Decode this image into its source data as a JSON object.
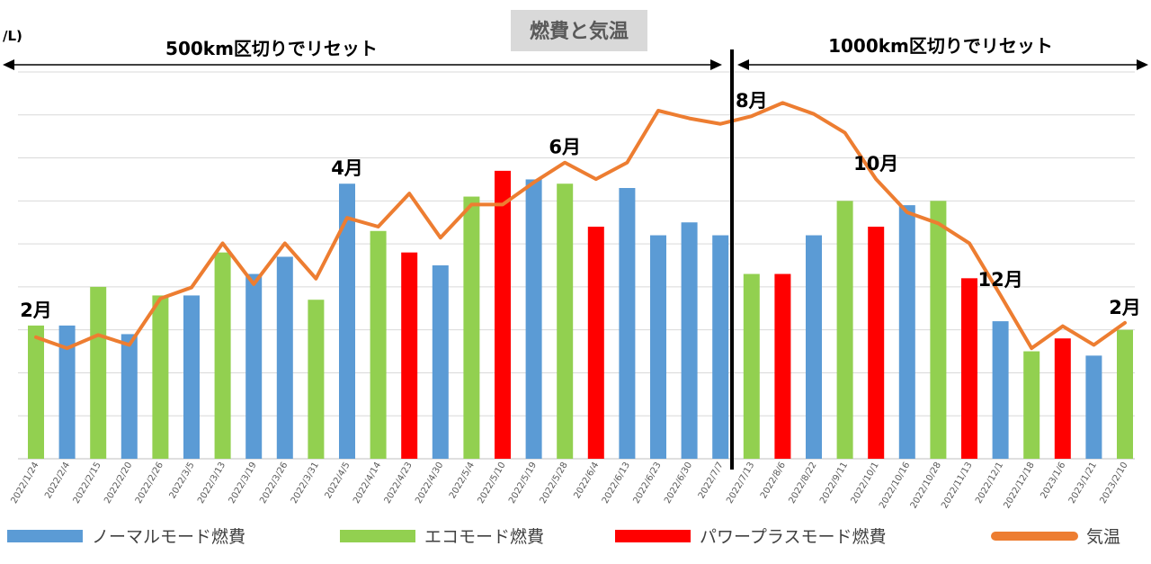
{
  "chart_data": {
    "type": "bar",
    "title": "燃費と気温",
    "y_unit_fragment": "/L)",
    "categories": [
      "2022/1/24",
      "2022/2/4",
      "2022/2/15",
      "2022/2/20",
      "2022/2/26",
      "2022/3/5",
      "2022/3/13",
      "2022/3/19",
      "2022/3/26",
      "2022/3/31",
      "2022/4/5",
      "2022/4/14",
      "2022/4/23",
      "2022/4/30",
      "2022/5/4",
      "2022/5/10",
      "2022/5/19",
      "2022/5/28",
      "2022/6/4",
      "2022/6/13",
      "2022/6/23",
      "2022/6/30",
      "2022/7/7",
      "2022/7/13",
      "2022/8/6",
      "2022/8/22",
      "2022/9/11",
      "2022/10/1",
      "2022/10/16",
      "2022/10/28",
      "2022/11/13",
      "2022/12/1",
      "2022/12/18",
      "2023/1/6",
      "2023/1/21",
      "2023/2/10"
    ],
    "bar_modes": [
      "eco",
      "normal",
      "eco",
      "normal",
      "eco",
      "normal",
      "eco",
      "normal",
      "normal",
      "eco",
      "normal",
      "eco",
      "power",
      "normal",
      "eco",
      "power",
      "normal",
      "eco",
      "power",
      "normal",
      "normal",
      "normal",
      "normal",
      "eco",
      "power",
      "normal",
      "eco",
      "power",
      "normal",
      "eco",
      "power",
      "normal",
      "eco",
      "power",
      "normal",
      "eco"
    ],
    "bar_values": [
      40.5,
      40.5,
      45.0,
      39.5,
      44.0,
      44.0,
      49.0,
      46.5,
      48.5,
      43.5,
      57.0,
      51.5,
      49.0,
      47.5,
      55.5,
      58.5,
      57.5,
      57.0,
      52.0,
      56.5,
      51.0,
      52.5,
      51.0,
      46.5,
      46.5,
      51.0,
      55.0,
      52.0,
      54.5,
      55.0,
      46.0,
      41.0,
      37.5,
      39.0,
      37.0,
      40.0
    ],
    "temperature": [
      1.0,
      0.0,
      1.2,
      0.3,
      4.5,
      5.5,
      9.5,
      5.8,
      9.5,
      6.3,
      11.8,
      11.0,
      14.0,
      10.0,
      13.0,
      13.0,
      15.0,
      16.8,
      15.3,
      16.8,
      21.5,
      20.8,
      20.3,
      21.0,
      22.2,
      21.2,
      19.5,
      15.3,
      12.3,
      11.3,
      9.5,
      4.8,
      0.0,
      2.0,
      0.3,
      2.3
    ],
    "bar_axis": [
      25,
      70
    ],
    "temp_axis": [
      -10,
      25
    ],
    "series": [
      {
        "key": "normal",
        "name": "ノーマルモード燃費",
        "color": "#5b9bd5"
      },
      {
        "key": "eco",
        "name": "エコモード燃費",
        "color": "#92d050"
      },
      {
        "key": "power",
        "name": "パワープラスモード燃費",
        "color": "#ff0000"
      },
      {
        "key": "temp",
        "name": "気温",
        "color": "#ed7d31"
      }
    ],
    "annotations": {
      "left_section": "500km区切りでリセット",
      "right_section": "1000km区切りでリセット",
      "months": [
        {
          "label": "2月",
          "index": 0
        },
        {
          "label": "4月",
          "index": 10
        },
        {
          "label": "6月",
          "index": 17
        },
        {
          "label": "8月",
          "index": 23
        },
        {
          "label": "10月",
          "index": 27
        },
        {
          "label": "12月",
          "index": 31
        },
        {
          "label": "2月",
          "index": 35
        }
      ]
    },
    "gridlines": true,
    "legend_position": "bottom"
  }
}
